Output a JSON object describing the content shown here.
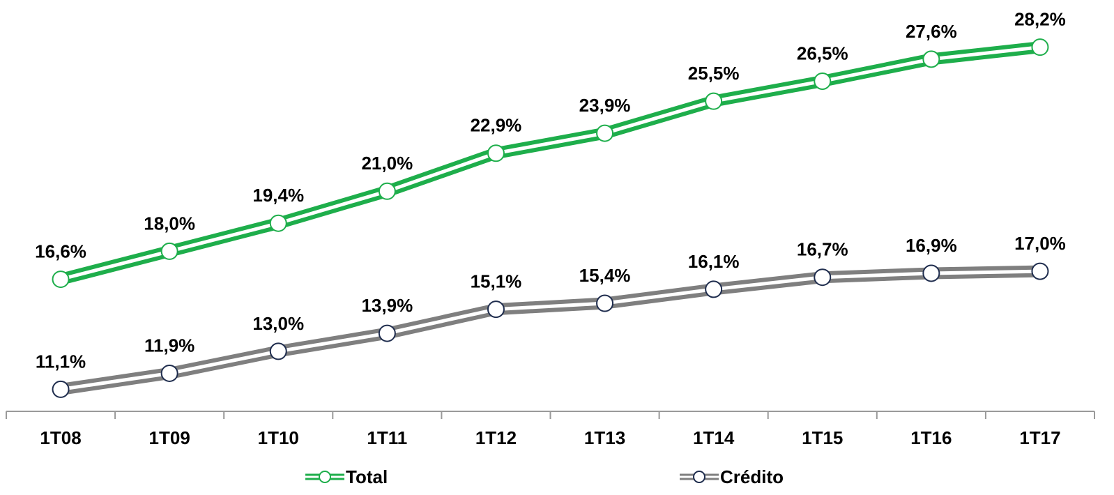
{
  "chart_data": {
    "type": "line",
    "categories": [
      "1T08",
      "1T09",
      "1T10",
      "1T11",
      "1T12",
      "1T13",
      "1T14",
      "1T15",
      "1T16",
      "1T17"
    ],
    "series": [
      {
        "name": "Total",
        "color": "#1eae4b",
        "marker_edge": "#1eae4b",
        "values": [
          16.6,
          18.0,
          19.4,
          21.0,
          22.9,
          23.9,
          25.5,
          26.5,
          27.6,
          28.2
        ],
        "value_labels": [
          "16,6%",
          "18,0%",
          "19,4%",
          "21,0%",
          "22,9%",
          "23,9%",
          "25,5%",
          "26,5%",
          "27,6%",
          "28,2%"
        ]
      },
      {
        "name": "Crédito",
        "color": "#7f7f7f",
        "marker_edge": "#1f2d4e",
        "values": [
          11.1,
          11.9,
          13.0,
          13.9,
          15.1,
          15.4,
          16.1,
          16.7,
          16.9,
          17.0
        ],
        "value_labels": [
          "11,1%",
          "11,9%",
          "13,0%",
          "13,9%",
          "15,1%",
          "15,4%",
          "16,1%",
          "16,7%",
          "16,9%",
          "17,0%"
        ]
      }
    ],
    "ylim": [
      10,
      30
    ],
    "legend": "bottom"
  }
}
